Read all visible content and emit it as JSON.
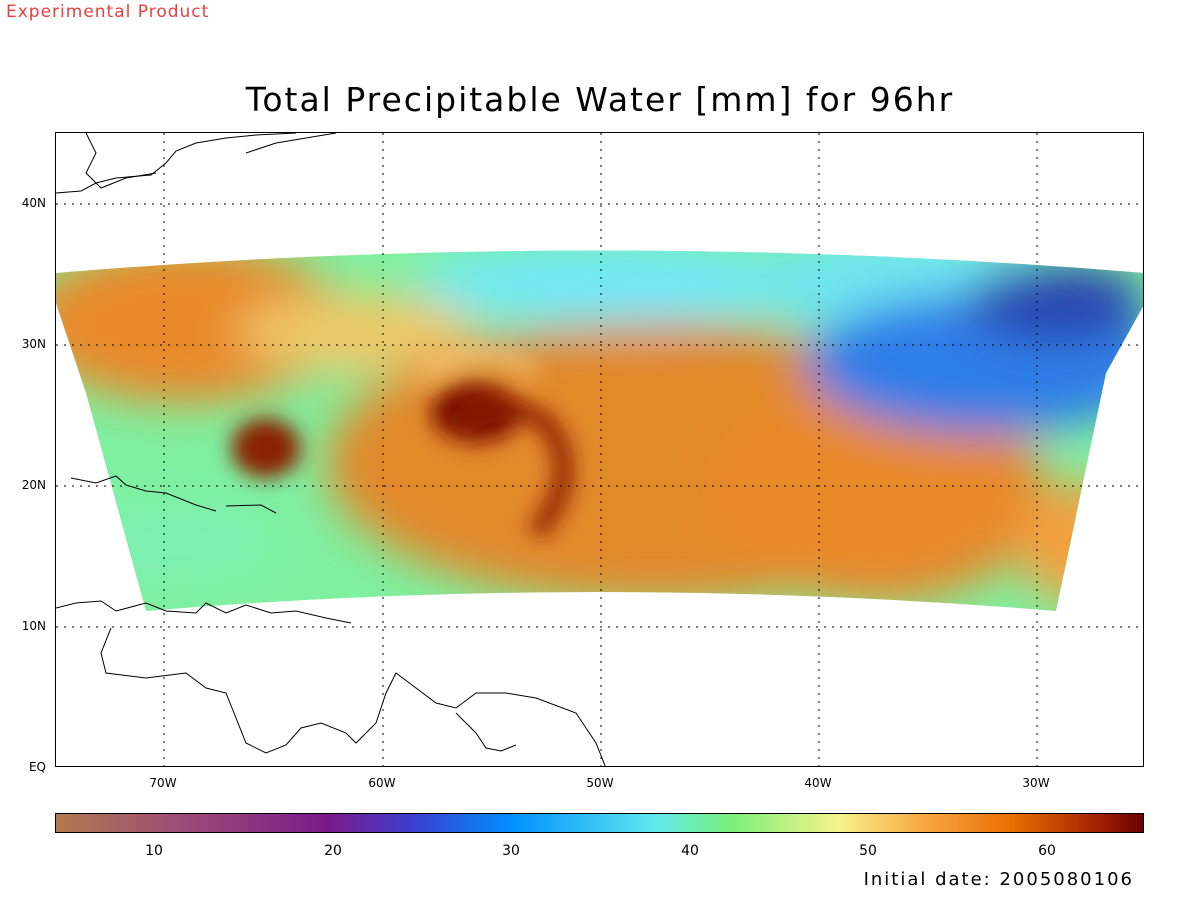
{
  "header": {
    "watermark": "Experimental Product",
    "title": "Total Precipitable Water [mm] for 96hr"
  },
  "map": {
    "lat_labels": [
      "40N",
      "30N",
      "20N",
      "10N",
      "EQ"
    ],
    "lon_labels": [
      "70W",
      "60W",
      "50W",
      "40W",
      "30W"
    ],
    "grid": "dotted"
  },
  "colorbar": {
    "ticks": [
      "10",
      "20",
      "30",
      "40",
      "50",
      "60"
    ]
  },
  "footer": {
    "initial_date": "Initial date: 2005080106"
  }
}
